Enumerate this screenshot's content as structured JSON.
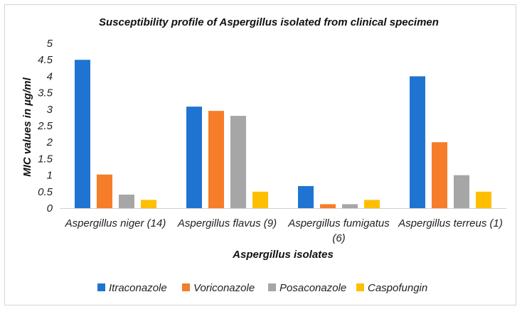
{
  "chart_data": {
    "type": "bar",
    "title": "Susceptibility profile of Aspergillus isolated from clinical specimen",
    "xlabel": "Aspergillus isolates",
    "ylabel": "MIC values in µg/ml",
    "ylim": [
      0,
      5
    ],
    "yticks": [
      "0",
      "0.5",
      "1",
      "1.5",
      "2",
      "2.5",
      "3",
      "3.5",
      "4",
      "4.5",
      "5"
    ],
    "grid": false,
    "legend_position": "bottom",
    "categories": [
      [
        "Aspergillus niger (14)"
      ],
      [
        "Aspergillus flavus (9)"
      ],
      [
        "Aspergillus fumigatus",
        "(6)"
      ],
      [
        "Aspergillus terreus (1)"
      ]
    ],
    "series": [
      {
        "name": "Itraconazole",
        "color": "#1f74d2",
        "values": [
          4.5,
          3.08,
          0.67,
          4.0
        ]
      },
      {
        "name": "Voriconazole",
        "color": "#f67d2a",
        "values": [
          1.02,
          2.95,
          0.12,
          2.0
        ]
      },
      {
        "name": "Posaconazole",
        "color": "#a6a6a6",
        "values": [
          0.41,
          2.8,
          0.12,
          1.0
        ]
      },
      {
        "name": "Caspofungin",
        "color": "#fdbf00",
        "values": [
          0.25,
          0.5,
          0.25,
          0.5
        ]
      }
    ]
  }
}
